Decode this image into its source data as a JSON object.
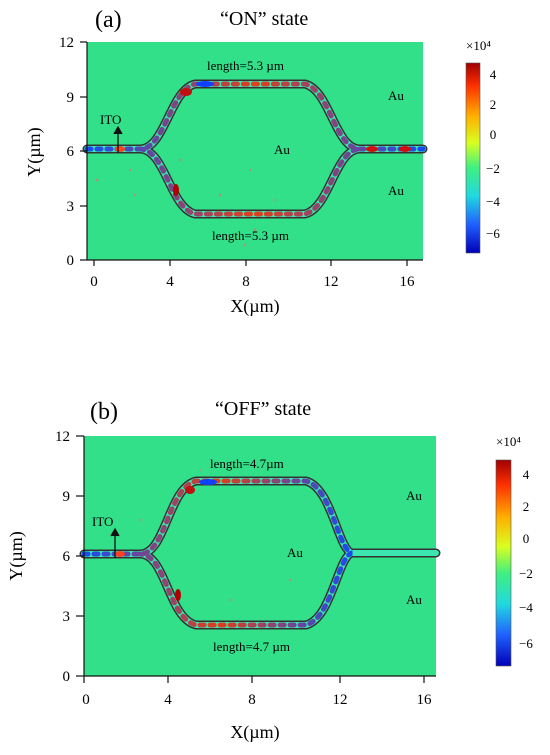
{
  "colors": {
    "background_field": "#33e08a",
    "waveguide_core": "#2ee6a0",
    "waveguide_edge": "#333333",
    "colorbar_top": "#b00000",
    "colorbar_bottom": "#0000c8"
  },
  "panels": [
    {
      "label": "(a)",
      "title": "“ON” state",
      "top_length": "length=5.3 µm",
      "bottom_length": "length=5.3 µm",
      "ito": "ITO",
      "au_top_right": "Au",
      "au_center": "Au",
      "au_bottom_right": "Au",
      "xlabel": "X(µm)",
      "ylabel": "Y(µm)",
      "xticks": [
        "0",
        "4",
        "8",
        "12",
        "16"
      ],
      "yticks": [
        "12",
        "9",
        "6",
        "3",
        "0"
      ],
      "colorbar_exponent": "×10⁴",
      "colorbar_ticks": [
        "4",
        "2",
        "0",
        "−2",
        "−4",
        "−6"
      ]
    },
    {
      "label": "(b)",
      "title": "“OFF” state",
      "top_length": "length=4.7µm",
      "bottom_length": "length=4.7 µm",
      "ito": "ITO",
      "au_top_right": "Au",
      "au_center": "Au",
      "au_bottom_right": "Au",
      "xlabel": "X(µm)",
      "ylabel": "Y(µm)",
      "xticks": [
        "0",
        "4",
        "8",
        "12",
        "16"
      ],
      "yticks": [
        "12",
        "9",
        "6",
        "3",
        "0"
      ],
      "colorbar_exponent": "×10⁴",
      "colorbar_ticks": [
        "4",
        "2",
        "0",
        "−2",
        "−4",
        "−6"
      ]
    }
  ]
}
